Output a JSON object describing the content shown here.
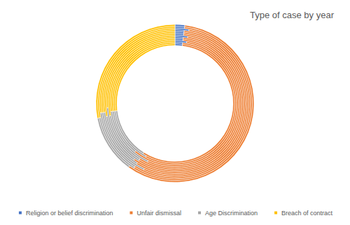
{
  "chart_data": {
    "type": "pie",
    "title": "Type of case by year",
    "categories": [
      null,
      null,
      null,
      null,
      null,
      null,
      null,
      null,
      null,
      null,
      null,
      null
    ],
    "series": [
      {
        "name": "Religion or belief discrimination",
        "color": "#4472c4",
        "values": [
          2,
          2,
          3,
          2,
          2,
          3,
          2,
          2,
          2,
          3,
          2,
          2
        ]
      },
      {
        "name": "Unfair dismissal",
        "color": "#ed7d31",
        "values": [
          57,
          56,
          58,
          55,
          57,
          56,
          58,
          57,
          55,
          56,
          57,
          58
        ]
      },
      {
        "name": "Age Discrimination",
        "color": "#a5a5a5",
        "values": [
          14,
          15,
          12,
          16,
          13,
          15,
          12,
          14,
          16,
          14,
          13,
          12
        ]
      },
      {
        "name": "Breach of contract",
        "color": "#ffc000",
        "values": [
          27,
          27,
          27,
          27,
          28,
          26,
          28,
          27,
          27,
          27,
          28,
          28
        ]
      }
    ],
    "legend": "bottom"
  }
}
